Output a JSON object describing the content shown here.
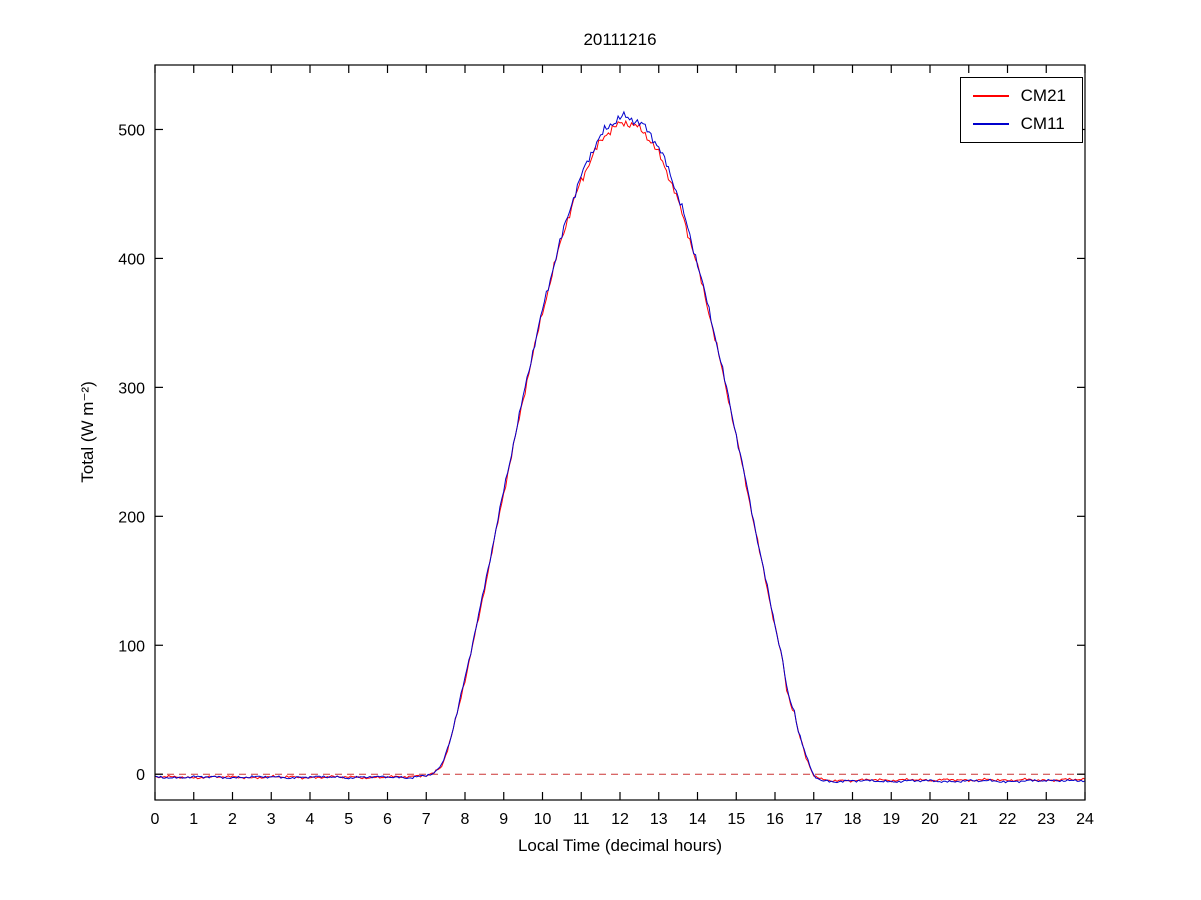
{
  "chart_data": {
    "type": "line",
    "title": "20111216",
    "xlabel": "Local Time (decimal hours)",
    "ylabel": "Total (W m⁻²)",
    "xlim": [
      0,
      24
    ],
    "ylim": [
      -20,
      550
    ],
    "x_ticks": [
      0,
      1,
      2,
      3,
      4,
      5,
      6,
      7,
      8,
      9,
      10,
      11,
      12,
      13,
      14,
      15,
      16,
      17,
      18,
      19,
      20,
      21,
      22,
      23,
      24
    ],
    "y_ticks": [
      0,
      100,
      200,
      300,
      400,
      500
    ],
    "grid": false,
    "legend_position": "top-right",
    "zero_line": {
      "y": 0,
      "color": "#cc3333",
      "style": "dashed"
    },
    "series": [
      {
        "name": "CM21",
        "color": "#ff0000",
        "points": [
          [
            0,
            -2
          ],
          [
            0.5,
            -2
          ],
          [
            1,
            -3
          ],
          [
            1.5,
            -2
          ],
          [
            2,
            -2
          ],
          [
            2.5,
            -3
          ],
          [
            3,
            -2
          ],
          [
            3.5,
            -2
          ],
          [
            4,
            -3
          ],
          [
            4.5,
            -2
          ],
          [
            5,
            -2
          ],
          [
            5.5,
            -3
          ],
          [
            6,
            -2
          ],
          [
            6.5,
            -2
          ],
          [
            7,
            -1
          ],
          [
            7.2,
            1
          ],
          [
            7.4,
            6
          ],
          [
            7.6,
            24
          ],
          [
            7.8,
            47
          ],
          [
            8,
            73
          ],
          [
            8.2,
            100
          ],
          [
            8.4,
            128
          ],
          [
            8.6,
            158
          ],
          [
            8.8,
            188
          ],
          [
            9,
            218
          ],
          [
            9.2,
            247
          ],
          [
            9.4,
            276
          ],
          [
            9.6,
            305
          ],
          [
            9.8,
            332
          ],
          [
            10,
            358
          ],
          [
            10.2,
            382
          ],
          [
            10.4,
            405
          ],
          [
            10.6,
            426
          ],
          [
            10.8,
            444
          ],
          [
            11,
            460
          ],
          [
            11.2,
            474
          ],
          [
            11.4,
            486
          ],
          [
            11.6,
            495
          ],
          [
            11.8,
            501
          ],
          [
            12,
            504
          ],
          [
            12.1,
            505
          ],
          [
            12.2,
            505
          ],
          [
            12.4,
            503
          ],
          [
            12.6,
            498
          ],
          [
            12.8,
            491
          ],
          [
            13,
            481
          ],
          [
            13.2,
            468
          ],
          [
            13.4,
            453
          ],
          [
            13.6,
            435
          ],
          [
            13.8,
            415
          ],
          [
            14,
            394
          ],
          [
            14.2,
            370
          ],
          [
            14.4,
            345
          ],
          [
            14.6,
            318
          ],
          [
            14.8,
            291
          ],
          [
            15,
            262
          ],
          [
            15.2,
            233
          ],
          [
            15.4,
            203
          ],
          [
            15.6,
            173
          ],
          [
            15.8,
            144
          ],
          [
            16,
            115
          ],
          [
            16.2,
            87
          ],
          [
            16.3,
            66
          ],
          [
            16.4,
            55
          ],
          [
            16.5,
            48
          ],
          [
            16.6,
            33
          ],
          [
            16.8,
            13
          ],
          [
            17,
            -1
          ],
          [
            17.2,
            -4
          ],
          [
            17.5,
            -5
          ],
          [
            18,
            -5
          ],
          [
            18.5,
            -4
          ],
          [
            19,
            -5
          ],
          [
            19.5,
            -4
          ],
          [
            20,
            -5
          ],
          [
            20.5,
            -4
          ],
          [
            21,
            -5
          ],
          [
            21.5,
            -4
          ],
          [
            22,
            -5
          ],
          [
            22.5,
            -4
          ],
          [
            23,
            -5
          ],
          [
            23.5,
            -4
          ],
          [
            24,
            -4
          ]
        ]
      },
      {
        "name": "CM11",
        "color": "#0000cc",
        "points": [
          [
            0,
            -2
          ],
          [
            0.5,
            -3
          ],
          [
            1,
            -2
          ],
          [
            1.5,
            -2
          ],
          [
            2,
            -3
          ],
          [
            2.5,
            -2
          ],
          [
            3,
            -2
          ],
          [
            3.5,
            -3
          ],
          [
            4,
            -2
          ],
          [
            4.5,
            -2
          ],
          [
            5,
            -3
          ],
          [
            5.5,
            -2
          ],
          [
            6,
            -2
          ],
          [
            6.5,
            -3
          ],
          [
            7,
            -1
          ],
          [
            7.2,
            1
          ],
          [
            7.4,
            7
          ],
          [
            7.6,
            25
          ],
          [
            7.8,
            48
          ],
          [
            8,
            75
          ],
          [
            8.2,
            102
          ],
          [
            8.4,
            130
          ],
          [
            8.6,
            160
          ],
          [
            8.8,
            190
          ],
          [
            9,
            220
          ],
          [
            9.2,
            249
          ],
          [
            9.4,
            278
          ],
          [
            9.6,
            307
          ],
          [
            9.8,
            334
          ],
          [
            10,
            360
          ],
          [
            10.2,
            384
          ],
          [
            10.4,
            407
          ],
          [
            10.6,
            428
          ],
          [
            10.8,
            447
          ],
          [
            11,
            464
          ],
          [
            11.2,
            478
          ],
          [
            11.4,
            490
          ],
          [
            11.6,
            499
          ],
          [
            11.8,
            505
          ],
          [
            12,
            509
          ],
          [
            12.1,
            510
          ],
          [
            12.2,
            509
          ],
          [
            12.4,
            507
          ],
          [
            12.6,
            503
          ],
          [
            12.8,
            496
          ],
          [
            13,
            486
          ],
          [
            13.2,
            473
          ],
          [
            13.4,
            457
          ],
          [
            13.6,
            439
          ],
          [
            13.8,
            418
          ],
          [
            14,
            396
          ],
          [
            14.2,
            372
          ],
          [
            14.4,
            347
          ],
          [
            14.6,
            320
          ],
          [
            14.8,
            292
          ],
          [
            15,
            263
          ],
          [
            15.2,
            234
          ],
          [
            15.4,
            204
          ],
          [
            15.6,
            174
          ],
          [
            15.8,
            145
          ],
          [
            16,
            116
          ],
          [
            16.2,
            88
          ],
          [
            16.3,
            67
          ],
          [
            16.4,
            56
          ],
          [
            16.5,
            49
          ],
          [
            16.6,
            34
          ],
          [
            16.8,
            14
          ],
          [
            17,
            -1
          ],
          [
            17.2,
            -5
          ],
          [
            17.5,
            -6
          ],
          [
            18,
            -5
          ],
          [
            18.5,
            -5
          ],
          [
            19,
            -6
          ],
          [
            19.5,
            -5
          ],
          [
            20,
            -5
          ],
          [
            20.5,
            -6
          ],
          [
            21,
            -5
          ],
          [
            21.5,
            -5
          ],
          [
            22,
            -6
          ],
          [
            22.5,
            -5
          ],
          [
            23,
            -5
          ],
          [
            23.5,
            -5
          ],
          [
            24,
            -5
          ]
        ]
      }
    ]
  }
}
